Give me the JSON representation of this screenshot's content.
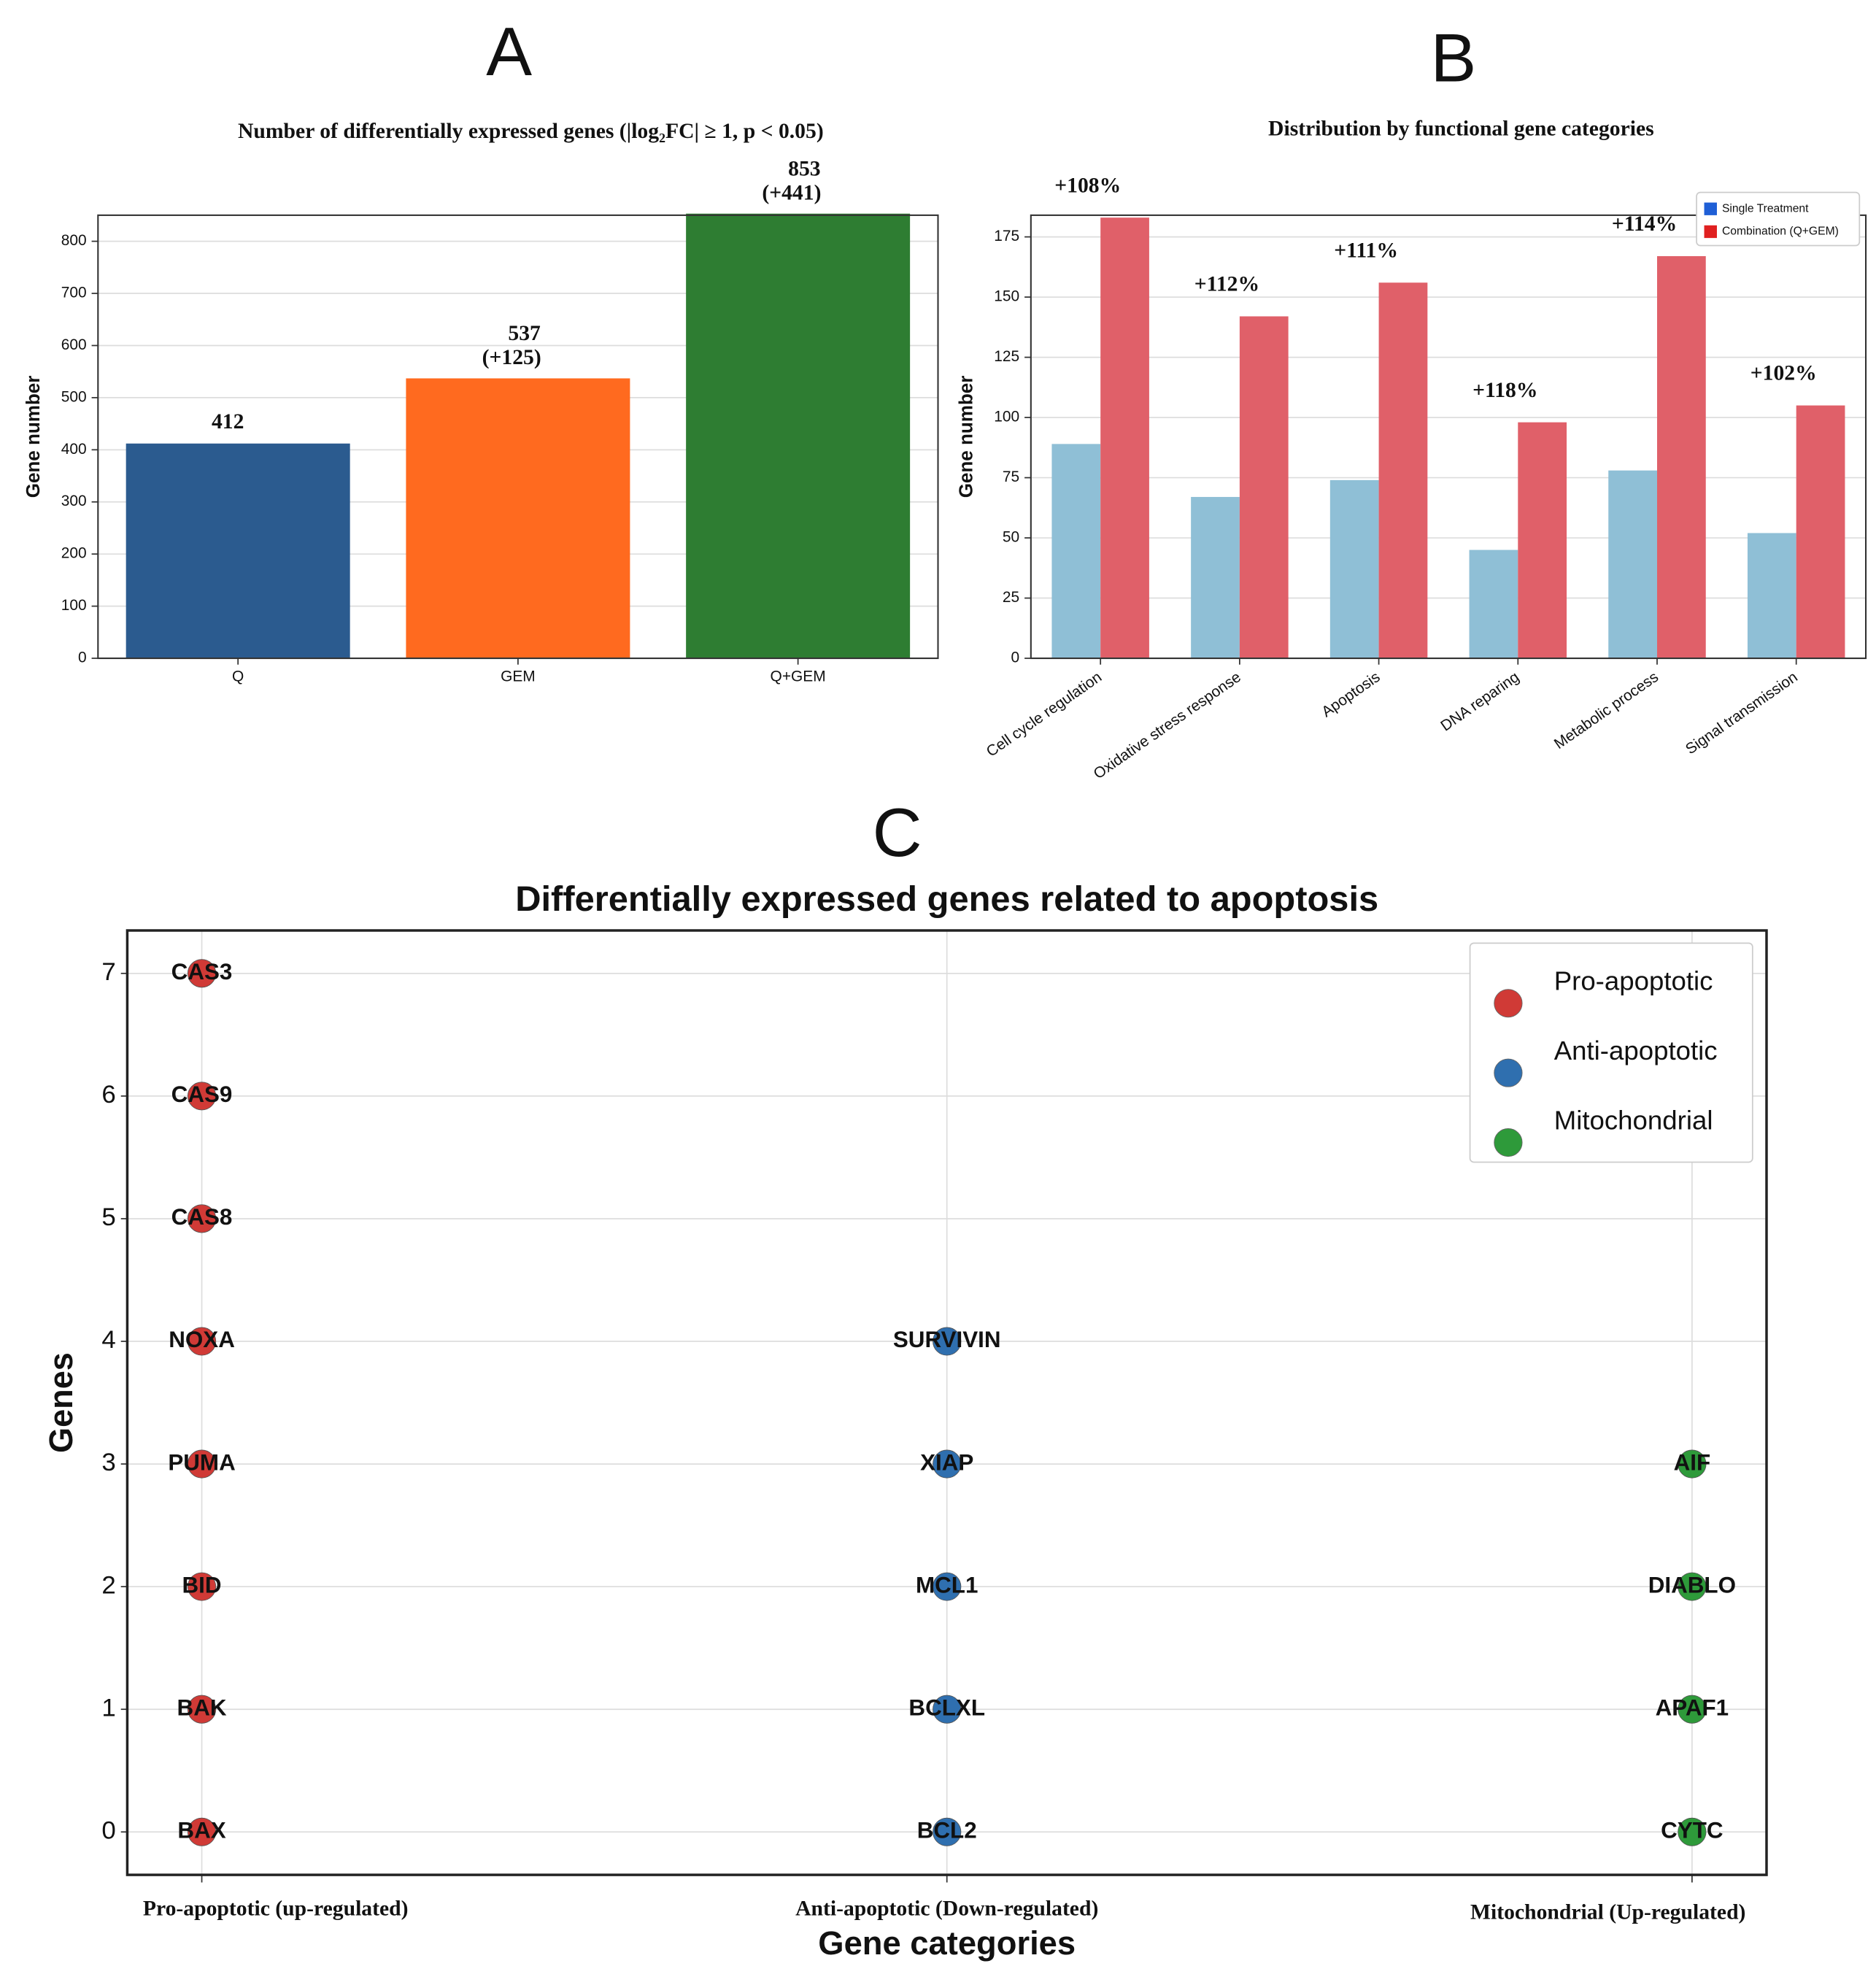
{
  "chart_data": [
    {
      "type": "bar",
      "panel": "A",
      "title": "Number of differentially expressed genes (|log₂FC| ≥ 1, p < 0.05)",
      "ylabel": "Gene number",
      "categories": [
        "Q",
        "GEM",
        "Q+GEM"
      ],
      "values": [
        412,
        537,
        853
      ],
      "increase_labels": [
        null,
        "(+125)",
        "(+441)"
      ],
      "colors": [
        "#2b5b8f",
        "#ff6a1f",
        "#2e7d32"
      ],
      "ylim": [
        0,
        850
      ],
      "yticks": [
        0,
        100,
        200,
        300,
        400,
        500,
        600,
        700,
        800
      ],
      "grid": true
    },
    {
      "type": "grouped_bar",
      "panel": "B",
      "title": "Distribution by functional gene categories",
      "ylabel": "Gene number",
      "categories": [
        "Cell cycle regulation",
        "Oxidative stress response",
        "Apoptosis",
        "DNA reparing",
        "Metabolic process",
        "Signal transmission"
      ],
      "series": [
        {
          "name": "Single Treatment",
          "color": "#8fbfd6",
          "legend_color": "#1f5fd6",
          "values": [
            89,
            67,
            74,
            45,
            78,
            52
          ]
        },
        {
          "name": "Combination (Q+GEM)",
          "color": "#e06069",
          "legend_color": "#e02020",
          "values": [
            183,
            142,
            156,
            98,
            167,
            105
          ]
        }
      ],
      "annotations": [
        "+108%",
        "+112%",
        "+111%",
        "+118%",
        "+114%",
        "+102%"
      ],
      "ylim": [
        0,
        184
      ],
      "yticks": [
        0,
        25,
        50,
        75,
        100,
        125,
        150,
        175
      ],
      "grid": true,
      "legend": "upper right"
    },
    {
      "type": "scatter",
      "panel": "C",
      "title": "Differentially expressed genes related to apoptosis",
      "xlabel": "Gene categories",
      "ylabel": "Genes",
      "series": [
        {
          "name": "Pro-apoptotic",
          "color": "#d03a36",
          "x": [
            0,
            0,
            0,
            0,
            0,
            0,
            0,
            0
          ],
          "values": [
            0,
            1,
            2,
            3,
            4,
            5,
            6,
            7
          ],
          "labels": [
            "BAX",
            "BAK",
            "BID",
            "PUMA",
            "NOXA",
            "CAS8",
            "CAS9",
            "CAS3"
          ]
        },
        {
          "name": "Anti-apoptotic",
          "color": "#2f6faf",
          "x": [
            1,
            1,
            1,
            1,
            1
          ],
          "values": [
            0,
            1,
            2,
            3,
            4
          ],
          "labels": [
            "BCL2",
            "BCLXL",
            "MCL1",
            "XIAP",
            "SURVIVIN"
          ]
        },
        {
          "name": "Mitochondrial",
          "color": "#2e9a3a",
          "x": [
            2,
            2,
            2,
            2
          ],
          "values": [
            0,
            1,
            2,
            3
          ],
          "labels": [
            "CYTC",
            "APAF1",
            "DIABLO",
            "AIF"
          ]
        }
      ],
      "xlim": [
        -0.1,
        2.1
      ],
      "xticks": [
        {
          "value": 0,
          "label": "Pro-apoptotic (up-regulated)"
        },
        {
          "value": 1,
          "label": "Anti-apoptotic (Down-regulated)"
        },
        {
          "value": 2,
          "label": "Mitochondrial (Up-regulated)"
        }
      ],
      "ylim": [
        -0.35,
        7.35
      ],
      "yticks": [
        0,
        1,
        2,
        3,
        4,
        5,
        6,
        7
      ],
      "grid": true,
      "legend": "upper right"
    }
  ]
}
